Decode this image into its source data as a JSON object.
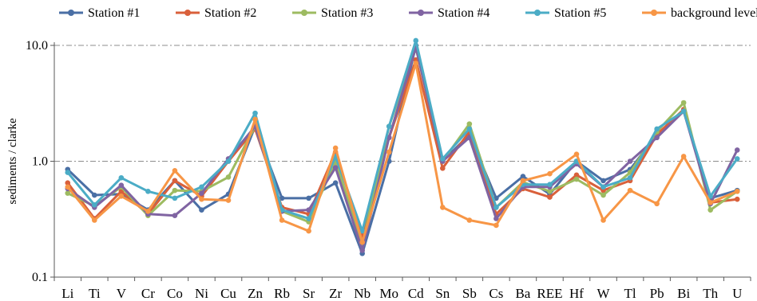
{
  "chart_data": {
    "type": "line",
    "title": "",
    "xlabel": "",
    "ylabel": "sediments / clarke",
    "yscale": "log",
    "ylim": [
      0.1,
      10.0
    ],
    "ytick_labels": [
      "0.1",
      "1.0",
      "10.0"
    ],
    "yticks": [
      0.1,
      1.0,
      10.0
    ],
    "grid": "dash-dot horizontal at 1.0 and 10.0",
    "legend_position": "top",
    "categories": [
      "Li",
      "Ti",
      "V",
      "Cr",
      "Co",
      "Ni",
      "Cu",
      "Zn",
      "Rb",
      "Sr",
      "Zr",
      "Nb",
      "Mo",
      "Cd",
      "Sn",
      "Sb",
      "Cs",
      "Ba",
      "REE",
      "Hf",
      "W",
      "Tl",
      "Pb",
      "Bi",
      "Th",
      "U"
    ],
    "series": [
      {
        "name": "Station #1",
        "color": "#4A6FA5",
        "values": [
          0.85,
          0.51,
          0.52,
          0.38,
          0.68,
          0.38,
          0.52,
          2.0,
          0.48,
          0.48,
          0.65,
          0.16,
          1.0,
          10.0,
          1.0,
          1.7,
          0.48,
          0.74,
          0.52,
          1.0,
          0.68,
          0.85,
          1.7,
          2.7,
          0.48,
          0.56
        ]
      },
      {
        "name": "Station #2",
        "color": "#D9603B",
        "values": [
          0.65,
          0.32,
          0.55,
          0.35,
          0.68,
          0.5,
          1.0,
          1.9,
          0.4,
          0.35,
          1.2,
          0.22,
          1.6,
          7.5,
          0.87,
          1.8,
          0.35,
          0.58,
          0.49,
          0.76,
          0.56,
          0.68,
          1.7,
          2.8,
          0.44,
          0.47
        ]
      },
      {
        "name": "Station #3",
        "color": "#9DBB61",
        "values": [
          0.53,
          0.41,
          0.6,
          0.34,
          0.56,
          0.55,
          0.73,
          2.0,
          0.37,
          0.3,
          1.0,
          0.19,
          2.0,
          9.5,
          1.0,
          2.1,
          0.4,
          0.66,
          0.55,
          0.7,
          0.51,
          0.8,
          1.8,
          3.2,
          0.38,
          0.55
        ]
      },
      {
        "name": "Station #4",
        "color": "#8064A2",
        "values": [
          0.58,
          0.4,
          0.62,
          0.35,
          0.34,
          0.53,
          1.05,
          2.0,
          0.37,
          0.38,
          0.88,
          0.17,
          1.6,
          9.6,
          1.0,
          1.6,
          0.32,
          0.6,
          0.6,
          0.95,
          0.6,
          1.0,
          1.6,
          2.7,
          0.43,
          1.25
        ]
      },
      {
        "name": "Station #5",
        "color": "#4BACC6",
        "values": [
          0.8,
          0.42,
          0.72,
          0.55,
          0.48,
          0.6,
          1.0,
          2.6,
          0.38,
          0.32,
          1.1,
          0.25,
          2.0,
          11.0,
          1.05,
          1.9,
          0.4,
          0.63,
          0.63,
          1.0,
          0.6,
          0.72,
          1.9,
          2.7,
          0.5,
          1.05
        ]
      },
      {
        "name": "background level",
        "color": "#F79646",
        "values": [
          0.6,
          0.31,
          0.5,
          0.37,
          0.83,
          0.47,
          0.46,
          2.3,
          0.31,
          0.25,
          1.3,
          0.2,
          1.2,
          7.0,
          0.4,
          0.31,
          0.28,
          0.68,
          0.78,
          1.15,
          0.31,
          0.56,
          0.43,
          1.1,
          0.44,
          0.55
        ]
      }
    ]
  }
}
